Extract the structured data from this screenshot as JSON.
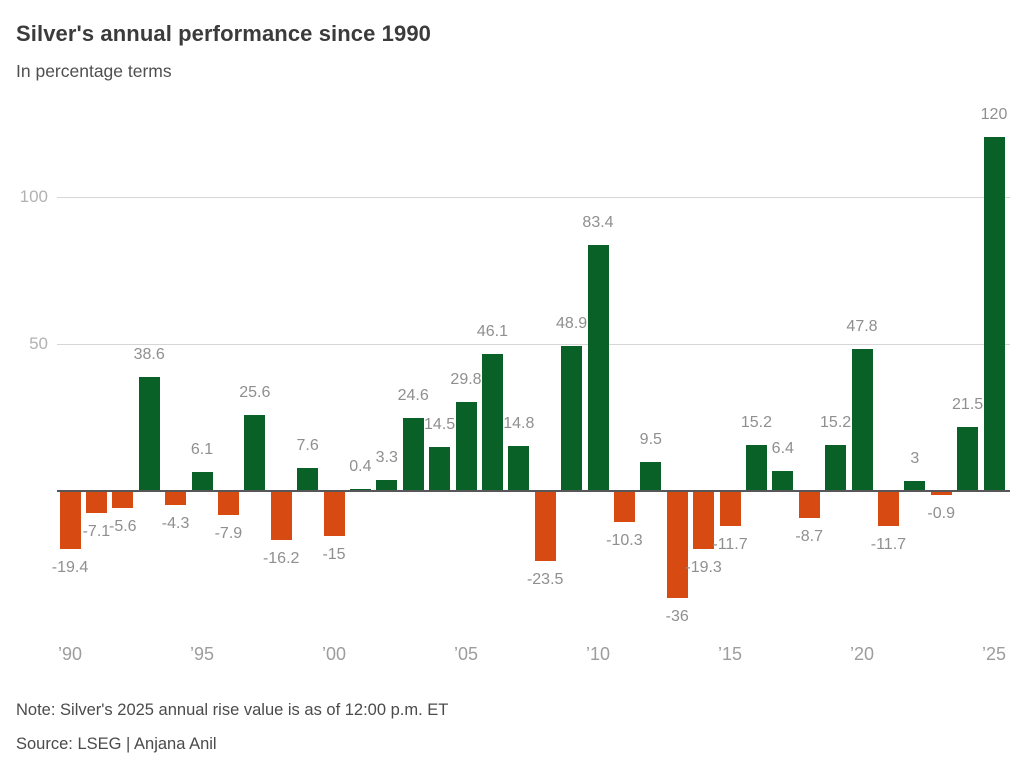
{
  "header": {
    "title": "Silver's annual performance since 1990",
    "subtitle": "In percentage terms"
  },
  "footer": {
    "note": "Note: Silver's 2025 annual rise value is as of 12:00 p.m. ET",
    "source": "Source: LSEG | Anjana Anil"
  },
  "colors": {
    "positive_bar": "#0a6127",
    "negative_bar": "#d74a12",
    "grid_line": "#d6d6d6",
    "zero_line": "#57575a",
    "value_label": "#8f8f8f",
    "axis_tick_label": "#9d9d9d",
    "y_tick_label": "#b2b2b2"
  },
  "chart_data": {
    "type": "bar",
    "title": "Silver's annual performance since 1990",
    "subtitle": "In percentage terms",
    "xlabel": "",
    "ylabel": "",
    "ylim": [
      -45,
      130
    ],
    "grid": "horizontal",
    "legend": "none",
    "y_ticks": [
      50,
      100
    ],
    "x_tick_labels": [
      {
        "index": 0,
        "label": "’90"
      },
      {
        "index": 5,
        "label": "’95"
      },
      {
        "index": 10,
        "label": "’00"
      },
      {
        "index": 15,
        "label": "’05"
      },
      {
        "index": 20,
        "label": "’10"
      },
      {
        "index": 25,
        "label": "’15"
      },
      {
        "index": 30,
        "label": "’20"
      },
      {
        "index": 35,
        "label": "’25"
      }
    ],
    "categories": [
      1990,
      1991,
      1992,
      1993,
      1994,
      1995,
      1996,
      1997,
      1998,
      1999,
      2000,
      2001,
      2002,
      2003,
      2004,
      2005,
      2006,
      2007,
      2008,
      2009,
      2010,
      2011,
      2012,
      2013,
      2014,
      2015,
      2016,
      2017,
      2018,
      2019,
      2020,
      2021,
      2022,
      2023,
      2024,
      2025
    ],
    "values": [
      -19.4,
      -7.1,
      -5.6,
      38.6,
      -4.3,
      6.1,
      -7.9,
      25.6,
      -16.2,
      7.6,
      -15,
      0.4,
      3.3,
      24.6,
      14.5,
      29.8,
      46.1,
      14.8,
      -23.5,
      48.9,
      83.4,
      -10.3,
      9.5,
      -36,
      -19.3,
      -11.7,
      15.2,
      6.4,
      -8.7,
      15.2,
      47.8,
      -11.7,
      3,
      -0.9,
      21.5,
      120
    ],
    "value_labels": [
      "-19.4",
      "-7.1",
      "-5.6",
      "38.6",
      "-4.3",
      "6.1",
      "-7.9",
      "25.6",
      "-16.2",
      "7.6",
      "-15",
      "0.4",
      "3.3",
      "24.6",
      "14.5",
      "29.8",
      "46.1",
      "14.8",
      "-23.5",
      "48.9",
      "83.4",
      "-10.3",
      "9.5",
      "-36",
      "-19.3",
      "-11.7",
      "15.2",
      "6.4",
      "-8.7",
      "15.2",
      "47.8",
      "-11.7",
      "3",
      "-0.9",
      "21.5",
      "120"
    ]
  }
}
